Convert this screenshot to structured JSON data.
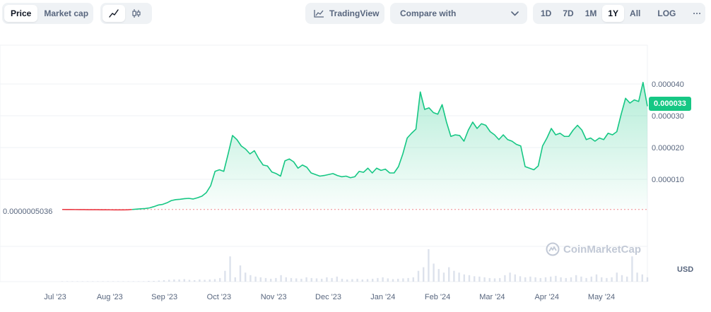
{
  "toolbar": {
    "type_tabs": [
      {
        "label": "Price",
        "active": true
      },
      {
        "label": "Market cap",
        "active": false
      }
    ],
    "chart_modes": [
      {
        "icon": "line-chart-icon",
        "active": true
      },
      {
        "icon": "candlestick-icon",
        "active": false
      }
    ],
    "tradingview_label": "TradingView",
    "compare_label": "Compare with",
    "ranges": [
      {
        "label": "1D",
        "active": false
      },
      {
        "label": "7D",
        "active": false
      },
      {
        "label": "1M",
        "active": false
      },
      {
        "label": "1Y",
        "active": true
      },
      {
        "label": "All",
        "active": false
      }
    ],
    "log_label": "LOG",
    "more_label": "···"
  },
  "chart": {
    "current_price_label": "0.000033",
    "start_price_label": "0.0000005036",
    "currency_label": "USD",
    "watermark": "CoinMarketCap",
    "colors": {
      "up": "#16c784",
      "down": "#ea3943",
      "grid": "#eff2f5"
    }
  },
  "chart_data": {
    "type": "line",
    "x_labels": [
      "Jul '23",
      "Aug '23",
      "Sep '23",
      "Oct '23",
      "Nov '23",
      "Dec '23",
      "Jan '24",
      "Feb '24",
      "Mar '24",
      "Apr '24",
      "May '24"
    ],
    "y_ticks": [
      "0.000010",
      "0.000020",
      "0.000030",
      "0.000040"
    ],
    "y_tick_values": [
      1e-05,
      2e-05,
      3e-05,
      4e-05
    ],
    "ylim": [
      0,
      5e-05
    ],
    "baseline": 5.036e-07,
    "current": 3.3e-05,
    "series": [
      {
        "values": [
          5e-07,
          4.9e-07,
          4.8e-07,
          4.7e-07,
          4.6e-07,
          4.5e-07,
          4.4e-07,
          4.3e-07,
          4.2e-07,
          4.1e-07,
          4e-07,
          3.9e-07,
          3.8e-07,
          3.7e-07,
          3.8e-07,
          4e-07,
          5e-07,
          6e-07,
          7e-07,
          8e-07,
          1e-06,
          1.4e-06,
          1.9e-06,
          2.1e-06,
          2.6e-06,
          3.3e-06,
          3.6e-06,
          3.7e-06,
          3.9e-06,
          4e-06,
          3.8e-06,
          4.2e-06,
          4.7e-06,
          5.8e-06,
          8e-06,
          1.25e-05,
          1.3e-05,
          1.25e-05,
          1.8e-05,
          2.38e-05,
          2.25e-05,
          2.05e-05,
          1.95e-05,
          1.8e-05,
          1.9e-05,
          1.65e-05,
          1.45e-05,
          1.42e-05,
          1.23e-05,
          1.18e-05,
          1.1e-05,
          1.58e-05,
          1.64e-05,
          1.55e-05,
          1.35e-05,
          1.45e-05,
          1.38e-05,
          1.2e-05,
          1.15e-05,
          1.1e-05,
          1.12e-05,
          1.15e-05,
          1.18e-05,
          1.12e-05,
          1.08e-05,
          1.1e-05,
          1.05e-05,
          1.08e-05,
          1.25e-05,
          1.22e-05,
          1.35e-05,
          1.2e-05,
          1.35e-05,
          1.28e-05,
          1.32e-05,
          1.2e-05,
          1.2e-05,
          1.4e-05,
          1.8e-05,
          2.3e-05,
          2.45e-05,
          2.58e-05,
          3.75e-05,
          3.2e-05,
          3.25e-05,
          3.1e-05,
          3.05e-05,
          3.35e-05,
          2.8e-05,
          2.35e-05,
          2.4e-05,
          2.38e-05,
          2.2e-05,
          2.55e-05,
          2.8e-05,
          2.6e-05,
          2.75e-05,
          2.7e-05,
          2.5e-05,
          2.4e-05,
          2.25e-05,
          2.4e-05,
          2.25e-05,
          2.2e-05,
          2.1e-05,
          2.05e-05,
          1.4e-05,
          1.35e-05,
          1.3e-05,
          1.42e-05,
          2.05e-05,
          2.3e-05,
          2.6e-05,
          2.4e-05,
          2.45e-05,
          2.35e-05,
          2.35e-05,
          2.55e-05,
          2.7e-05,
          2.55e-05,
          2.25e-05,
          2.3e-05,
          2.2e-05,
          2.3e-05,
          2.25e-05,
          2.45e-05,
          2.4e-05,
          2.5e-05,
          3.05e-05,
          3.55e-05,
          3.4e-05,
          3.5e-05,
          3.45e-05,
          4.05e-05,
          3.3e-05
        ]
      }
    ],
    "volume": [
      1,
      1,
      1,
      1,
      1,
      1,
      1,
      1,
      1,
      1,
      1,
      1,
      1,
      1,
      1,
      1,
      1,
      2,
      2,
      3,
      4,
      5,
      6,
      6,
      7,
      5,
      4,
      6,
      5,
      6,
      7,
      10,
      30,
      70,
      12,
      45,
      25,
      18,
      14,
      12,
      10,
      8,
      10,
      18,
      12,
      10,
      9,
      8,
      12,
      10,
      9,
      8,
      12,
      10,
      14,
      8,
      6,
      7,
      8,
      6,
      7,
      8,
      10,
      12,
      9,
      7,
      8,
      9,
      10,
      12,
      30,
      40,
      90,
      50,
      35,
      25,
      40,
      30,
      25,
      20,
      18,
      15,
      14,
      12,
      10,
      9,
      10,
      18,
      25,
      20,
      15,
      12,
      14,
      12,
      10,
      12,
      14,
      16,
      12,
      10,
      12,
      18,
      14,
      10,
      14,
      20,
      12,
      10,
      12,
      25,
      18,
      14,
      70,
      25,
      20,
      12
    ]
  }
}
